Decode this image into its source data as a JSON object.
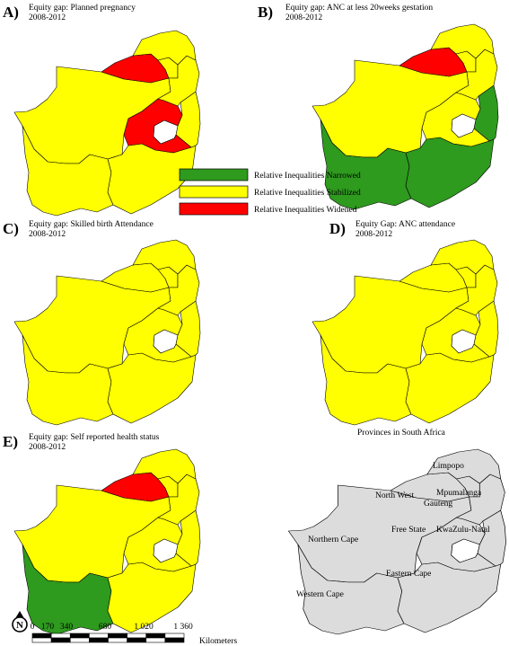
{
  "colors": {
    "narrowed": "#2e9a1e",
    "stabilized": "#ffff00",
    "widened": "#ff0000",
    "reference": "#dcdcdc",
    "lesotho": "#ffffff",
    "border": "#000000"
  },
  "legend": {
    "narrowed": "Relative Inequalities Narrowed",
    "stabilized": "Relative Inequalities Stabilized",
    "widened": "Relative Inequalities Widened"
  },
  "panels": [
    {
      "id": "A",
      "letter": "A)",
      "title1": "Equity gap: Planned pregnancy",
      "title2": "2008-2012",
      "status": {
        "WC": "stabilized",
        "NC": "stabilized",
        "EC": "stabilized",
        "FS": "widened",
        "NW": "widened",
        "GP": "stabilized",
        "LP": "stabilized",
        "MP": "stabilized",
        "KZN": "stabilized"
      }
    },
    {
      "id": "B",
      "letter": "B)",
      "title1": "Equity gap: ANC at less 20weeks gestation",
      "title2": "2008-2012",
      "status": {
        "WC": "narrowed",
        "NC": "stabilized",
        "EC": "narrowed",
        "FS": "stabilized",
        "NW": "widened",
        "GP": "stabilized",
        "LP": "stabilized",
        "MP": "stabilized",
        "KZN": "narrowed"
      }
    },
    {
      "id": "C",
      "letter": "C)",
      "title1": "Equity gap: Skilled birth Attendance",
      "title2": "2008-2012",
      "status": {
        "WC": "stabilized",
        "NC": "stabilized",
        "EC": "stabilized",
        "FS": "stabilized",
        "NW": "stabilized",
        "GP": "stabilized",
        "LP": "stabilized",
        "MP": "stabilized",
        "KZN": "stabilized"
      }
    },
    {
      "id": "D",
      "letter": "D)",
      "title1": "Equity  Gap:  ANC  attendance",
      "title2": "2008-2012",
      "status": {
        "WC": "stabilized",
        "NC": "stabilized",
        "EC": "stabilized",
        "FS": "stabilized",
        "NW": "stabilized",
        "GP": "stabilized",
        "LP": "stabilized",
        "MP": "stabilized",
        "KZN": "stabilized"
      }
    },
    {
      "id": "E",
      "letter": "E)",
      "title1": "Equity gap: Self reported health status",
      "title2": "2008-2012",
      "status": {
        "WC": "narrowed",
        "NC": "stabilized",
        "EC": "stabilized",
        "FS": "stabilized",
        "NW": "widened",
        "GP": "stabilized",
        "LP": "stabilized",
        "MP": "stabilized",
        "KZN": "stabilized"
      }
    }
  ],
  "reference_map": {
    "title": "Provinces in South Africa",
    "labels": {
      "LP": "Limpopo",
      "NW": "North West",
      "MP": "Mpumalanga",
      "GP": "Gauteng",
      "NC": "Northern Cape",
      "FS": "Free State",
      "KZN": "KwaZulu-Natal",
      "EC": "Eastern Cape",
      "WC": "Western Cape"
    }
  },
  "north_arrow": "N",
  "scale_bar": {
    "ticks": [
      "0",
      "170",
      "340",
      "680",
      "1 020",
      "1 360"
    ],
    "unit": "Kilometers"
  }
}
